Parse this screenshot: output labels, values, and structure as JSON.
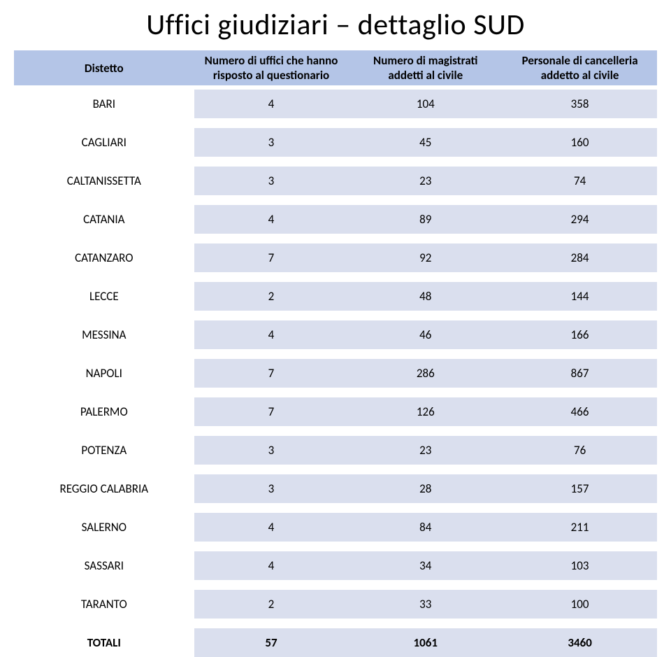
{
  "title": "Uffici giudiziari – dettaglio SUD",
  "columns": [
    "Distetto",
    "Numero  di uffici che hanno risposto al questionario",
    "Numero di magistrati addetti al civile",
    "Personale di cancelleria addetto al civile"
  ],
  "rows": [
    {
      "label": "BARI",
      "v1": "4",
      "v2": "104",
      "v3": "358"
    },
    {
      "label": "CAGLIARI",
      "v1": "3",
      "v2": "45",
      "v3": "160"
    },
    {
      "label": "CALTANISSETTA",
      "v1": "3",
      "v2": "23",
      "v3": "74"
    },
    {
      "label": "CATANIA",
      "v1": "4",
      "v2": "89",
      "v3": "294"
    },
    {
      "label": "CATANZARO",
      "v1": "7",
      "v2": "92",
      "v3": "284"
    },
    {
      "label": "LECCE",
      "v1": "2",
      "v2": "48",
      "v3": "144"
    },
    {
      "label": "MESSINA",
      "v1": "4",
      "v2": "46",
      "v3": "166"
    },
    {
      "label": "NAPOLI",
      "v1": "7",
      "v2": "286",
      "v3": "867"
    },
    {
      "label": "PALERMO",
      "v1": "7",
      "v2": "126",
      "v3": "466"
    },
    {
      "label": "POTENZA",
      "v1": "3",
      "v2": "23",
      "v3": "76"
    },
    {
      "label": "REGGIO CALABRIA",
      "v1": "3",
      "v2": "28",
      "v3": "157"
    },
    {
      "label": "SALERNO",
      "v1": "4",
      "v2": "84",
      "v3": "211"
    },
    {
      "label": "SASSARI",
      "v1": "4",
      "v2": "34",
      "v3": "103"
    },
    {
      "label": "TARANTO",
      "v1": "2",
      "v2": "33",
      "v3": "100"
    }
  ],
  "total": {
    "label": "TOTALI",
    "v1": "57",
    "v2": "1061",
    "v3": "3460"
  },
  "style": {
    "header_bg": "#b4c5e7",
    "cell_bg": "#dadfee",
    "page_bg": "#ffffff",
    "text_color": "#000000",
    "title_fontsize": 42,
    "body_fontsize": 17,
    "row_gap": 14
  }
}
